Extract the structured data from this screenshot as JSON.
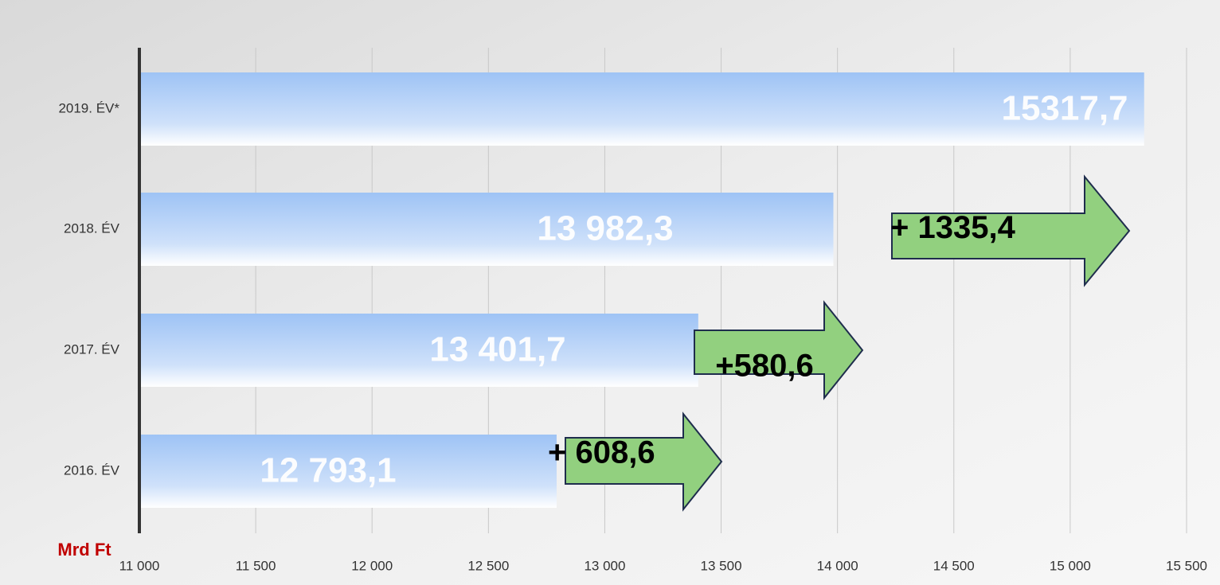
{
  "chart_data": {
    "type": "bar",
    "orientation": "horizontal",
    "categories": [
      "2019. ÉV*",
      "2018. ÉV",
      "2017. ÉV",
      "2016. ÉV"
    ],
    "values": [
      15317.7,
      13982.3,
      13401.7,
      12793.1
    ],
    "value_labels": [
      "15317,7",
      "13 982,3",
      "13 401,7",
      "12 793,1"
    ],
    "color": "#9ec3f5",
    "annotations": [
      "+ 1335,4",
      "+580,6",
      "+ 608,6"
    ],
    "annotation_color": "#92d07f",
    "x_axis_label": "Mrd Ft",
    "xlim": [
      11000,
      15500
    ],
    "xticks": [
      {
        "value": 11000,
        "label": "11 000"
      },
      {
        "value": 11500,
        "label": "11 500"
      },
      {
        "value": 12000,
        "label": "12 000"
      },
      {
        "value": 12500,
        "label": "12 500"
      },
      {
        "value": 13000,
        "label": "13 000"
      },
      {
        "value": 13500,
        "label": "13 500"
      },
      {
        "value": 14000,
        "label": "14 000"
      },
      {
        "value": 14500,
        "label": "14 500"
      },
      {
        "value": 15000,
        "label": "15 000"
      },
      {
        "value": 15500,
        "label": "15 500"
      }
    ],
    "grid": true
  }
}
